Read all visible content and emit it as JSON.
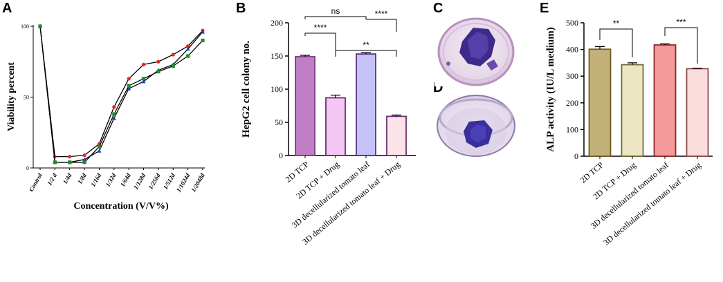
{
  "panels": {
    "A": "A",
    "B": "B",
    "C": "C",
    "D": "D",
    "E": "E"
  },
  "chart_data": [
    {
      "panel": "A",
      "type": "line",
      "title": "",
      "xlabel": "Concentration (V/V%)",
      "ylabel": "Viability percent",
      "categories": [
        "Control",
        "1/2 d",
        "1/4d",
        "1/8d",
        "1/16d",
        "1/32d",
        "1/64d",
        "1/128d",
        "1/256d",
        "1/512d",
        "1/1024d",
        "1/2048d"
      ],
      "ylim": [
        0,
        100
      ],
      "yticks": [
        0,
        50,
        100
      ],
      "series": [
        {
          "color": "#e32626",
          "marker": "circle",
          "values": [
            100,
            8,
            8,
            9,
            17,
            43,
            63,
            73,
            75,
            80,
            86,
            97
          ]
        },
        {
          "color": "#1f3db8",
          "marker": "triangle",
          "values": [
            100,
            4,
            4,
            6,
            12,
            35,
            56,
            61,
            69,
            73,
            84,
            96
          ]
        },
        {
          "color": "#1f8a2e",
          "marker": "square",
          "values": [
            100,
            4,
            4,
            4,
            15,
            38,
            58,
            63,
            68,
            72,
            79,
            90
          ]
        }
      ]
    },
    {
      "panel": "B",
      "type": "bar",
      "title": "",
      "xlabel": "",
      "ylabel": "HepG2 cell colony no.",
      "categories": [
        "2D TCP",
        "2D TCP + Drug",
        "3D decellularized tomato leaf",
        "3D decellularized tomato leaf + Drug"
      ],
      "values": [
        149,
        87,
        153,
        59
      ],
      "errors": [
        2,
        4,
        2,
        2
      ],
      "colors": [
        "#c07ec4",
        "#f2c7f4",
        "#c4c2f6",
        "#fbe3e8"
      ],
      "ylim": [
        0,
        200
      ],
      "yticks": [
        0,
        50,
        100,
        150,
        200
      ],
      "significance": [
        {
          "from": 0,
          "to": 2,
          "label": "ns"
        },
        {
          "from": 0,
          "to": 1,
          "label": "****"
        },
        {
          "from": 2,
          "to": 3,
          "label": "****"
        },
        {
          "from": 1,
          "to": 3,
          "label": "**"
        }
      ]
    },
    {
      "panel": "E",
      "type": "bar",
      "title": "",
      "xlabel": "",
      "ylabel": "ALP activity (IU/L medium)",
      "categories": [
        "2D TCP",
        "2D TCP + Drug",
        "3D decellularized tomato leaf",
        "3D decellularized tomato leaf + Drug"
      ],
      "values": [
        401,
        343,
        417,
        328
      ],
      "errors": [
        10,
        7,
        4,
        2
      ],
      "colors": [
        "#c2b27a",
        "#ece6c5",
        "#f49a9a",
        "#fbdcdc"
      ],
      "ylim": [
        0,
        500
      ],
      "yticks": [
        0,
        100,
        200,
        300,
        400,
        500
      ],
      "significance": [
        {
          "from": 0,
          "to": 1,
          "label": "**"
        },
        {
          "from": 2,
          "to": 3,
          "label": "***"
        }
      ]
    }
  ]
}
